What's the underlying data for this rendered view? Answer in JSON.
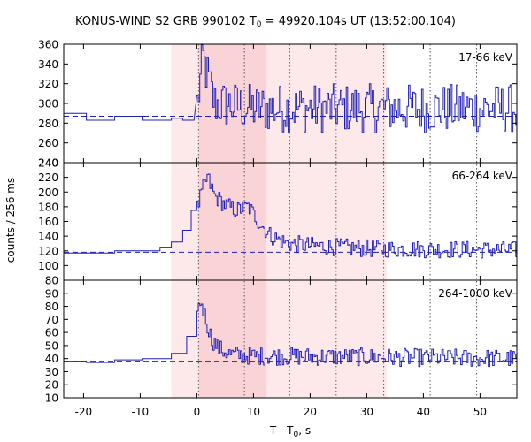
{
  "chart_data": {
    "type": "line",
    "title": {
      "text_before": "KONUS-WIND S2 GRB 990102 T",
      "sub": "0",
      "text_after": " = 49920.104s UT (13:52:00.104)"
    },
    "ylabel": "counts / 256 ms",
    "xlabel": {
      "text_before": "T - T",
      "sub": "0",
      "text_after": ", s"
    },
    "x_range": [
      -23.5,
      56.5
    ],
    "x_ticks": [
      -20,
      -10,
      0,
      10,
      20,
      30,
      40,
      50
    ],
    "time_bin_s": 0.256,
    "shaded_intervals": [
      [
        -4.5,
        33.5
      ],
      [
        0.3,
        12.3
      ]
    ],
    "vertical_dotted_lines": [
      0.3,
      8.4,
      16.4,
      24.6,
      33.0,
      41.2,
      49.4
    ],
    "panels": [
      {
        "band_label": "17-66 keV",
        "ylim": [
          240,
          360
        ],
        "y_ticks": [
          240,
          260,
          280,
          300,
          320,
          340,
          360
        ],
        "background_level": 287,
        "pre_trigger_steps": [
          {
            "x0": -23.5,
            "x1": -19.5,
            "y": 290
          },
          {
            "x0": -19.5,
            "x1": -14.5,
            "y": 283
          },
          {
            "x0": -14.5,
            "x1": -9.5,
            "y": 287
          },
          {
            "x0": -9.5,
            "x1": -4.5,
            "y": 283
          },
          {
            "x0": -4.5,
            "x1": -2.5,
            "y": 285
          },
          {
            "x0": -2.5,
            "x1": -0.5,
            "y": 283
          }
        ],
        "profile_points": [
          {
            "t": 0.0,
            "y": 300
          },
          {
            "t": 1.0,
            "y": 345
          },
          {
            "t": 3.0,
            "y": 300
          },
          {
            "t": 6.0,
            "y": 298
          },
          {
            "t": 10.0,
            "y": 295
          },
          {
            "t": 56.5,
            "y": 295
          }
        ],
        "noise_amplitude": 25
      },
      {
        "band_label": "66-264 keV",
        "ylim": [
          80,
          240
        ],
        "y_ticks": [
          80,
          100,
          120,
          140,
          160,
          180,
          200,
          220,
          240
        ],
        "background_level": 118,
        "pre_trigger_steps": [
          {
            "x0": -23.5,
            "x1": -14.5,
            "y": 117
          },
          {
            "x0": -14.5,
            "x1": -6.5,
            "y": 120
          },
          {
            "x0": -6.5,
            "x1": -4.5,
            "y": 125
          },
          {
            "x0": -4.5,
            "x1": -2.5,
            "y": 132
          },
          {
            "x0": -2.5,
            "x1": -1.0,
            "y": 148
          },
          {
            "x0": -1.0,
            "x1": 0.0,
            "y": 175
          }
        ],
        "profile_points": [
          {
            "t": 0.0,
            "y": 178
          },
          {
            "t": 1.0,
            "y": 205
          },
          {
            "t": 1.8,
            "y": 220
          },
          {
            "t": 3.0,
            "y": 195
          },
          {
            "t": 5.0,
            "y": 182
          },
          {
            "t": 7.0,
            "y": 175
          },
          {
            "t": 9.0,
            "y": 180
          },
          {
            "t": 11.0,
            "y": 158
          },
          {
            "t": 13.0,
            "y": 140
          },
          {
            "t": 16.0,
            "y": 130
          },
          {
            "t": 20.0,
            "y": 127
          },
          {
            "t": 30.0,
            "y": 123
          },
          {
            "t": 56.5,
            "y": 121
          }
        ],
        "noise_amplitude": 12
      },
      {
        "band_label": "264-1000 keV",
        "ylim": [
          10,
          100
        ],
        "y_ticks": [
          10,
          20,
          30,
          40,
          50,
          60,
          70,
          80,
          90
        ],
        "background_level": 38,
        "pre_trigger_steps": [
          {
            "x0": -23.5,
            "x1": -19.5,
            "y": 38
          },
          {
            "x0": -19.5,
            "x1": -14.5,
            "y": 37
          },
          {
            "x0": -14.5,
            "x1": -9.5,
            "y": 39
          },
          {
            "x0": -9.5,
            "x1": -4.5,
            "y": 40
          },
          {
            "x0": -4.5,
            "x1": -1.8,
            "y": 44
          },
          {
            "x0": -1.8,
            "x1": 0.0,
            "y": 57
          }
        ],
        "profile_points": [
          {
            "t": 0.0,
            "y": 75
          },
          {
            "t": 0.6,
            "y": 85
          },
          {
            "t": 1.5,
            "y": 70
          },
          {
            "t": 2.5,
            "y": 55
          },
          {
            "t": 4.0,
            "y": 47
          },
          {
            "t": 6.0,
            "y": 43
          },
          {
            "t": 10.0,
            "y": 42
          },
          {
            "t": 56.5,
            "y": 40
          }
        ],
        "noise_amplitude": 7
      }
    ],
    "colors": {
      "data_line": "#1f1fb4",
      "background_dash": "#1f1fb4",
      "outer_shade": "#fde9ea",
      "inner_shade": "#f9d3d6",
      "dotted_line": "#555555"
    }
  }
}
